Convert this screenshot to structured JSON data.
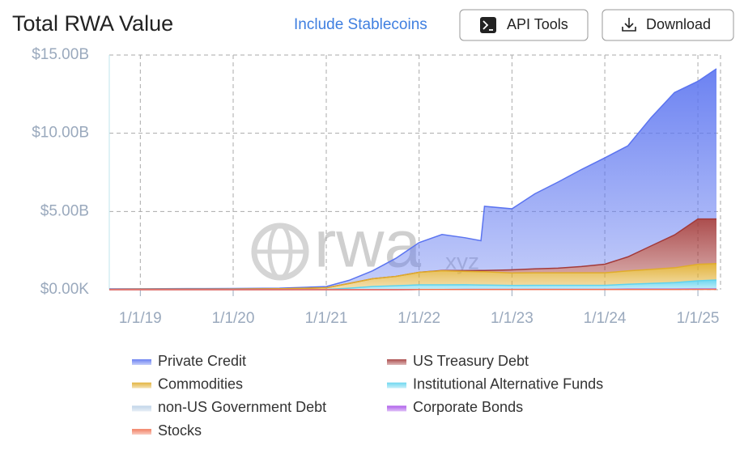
{
  "ui": {
    "stablecoin_toggle": "Include Stablecoins",
    "buttons": [
      "API Tools",
      "Download"
    ]
  },
  "chart_data": {
    "type": "stacked-area",
    "title": "Total RWA Value",
    "watermark": [
      "rwa",
      "xyz"
    ],
    "x": [
      "2018-09-01",
      "2019-01-01",
      "2019-07-01",
      "2020-01-01",
      "2020-07-01",
      "2021-01-01",
      "2021-04-01",
      "2021-07-01",
      "2021-10-01",
      "2022-01-01",
      "2022-04-01",
      "2022-07-01",
      "2022-09-01",
      "2022-09-15",
      "2023-01-01",
      "2023-04-01",
      "2023-07-01",
      "2023-10-01",
      "2024-01-01",
      "2024-04-01",
      "2024-07-01",
      "2024-10-01",
      "2025-01-01",
      "2025-03-15"
    ],
    "xlim": [
      "2018-09-01",
      "2025-03-15"
    ],
    "xticks": [
      {
        "value": "2019-01-01",
        "label": "1/1/19"
      },
      {
        "value": "2020-01-01",
        "label": "1/1/20"
      },
      {
        "value": "2021-01-01",
        "label": "1/1/21"
      },
      {
        "value": "2022-01-01",
        "label": "1/1/22"
      },
      {
        "value": "2023-01-01",
        "label": "1/1/23"
      },
      {
        "value": "2024-01-01",
        "label": "1/1/24"
      },
      {
        "value": "2025-01-01",
        "label": "1/1/25"
      }
    ],
    "ylim": [
      0,
      15
    ],
    "yticks": [
      {
        "value": 0,
        "label": "$0.00K"
      },
      {
        "value": 5,
        "label": "$5.00B"
      },
      {
        "value": 10,
        "label": "$10.00B"
      },
      {
        "value": 15,
        "label": "$15.00B"
      }
    ],
    "grid": true,
    "series": [
      {
        "name": "Private Credit",
        "color": "#5b74f0",
        "values": [
          0.03,
          0.03,
          0.04,
          0.04,
          0.04,
          0.08,
          0.2,
          0.5,
          1.15,
          1.9,
          2.3,
          2.1,
          1.9,
          4.1,
          3.9,
          4.8,
          5.5,
          6.2,
          6.8,
          7.1,
          8.2,
          9.1,
          8.8,
          9.6
        ]
      },
      {
        "name": "US Treasury Debt",
        "color": "#a33a3a",
        "values": [
          0,
          0,
          0,
          0,
          0,
          0,
          0,
          0,
          0,
          0,
          0.02,
          0.05,
          0.08,
          0.08,
          0.2,
          0.25,
          0.3,
          0.4,
          0.55,
          0.9,
          1.5,
          2.1,
          2.9,
          2.85
        ]
      },
      {
        "name": "Commodities",
        "color": "#e0ac2a",
        "values": [
          0.02,
          0.03,
          0.03,
          0.04,
          0.06,
          0.1,
          0.3,
          0.5,
          0.6,
          0.8,
          0.9,
          0.85,
          0.85,
          0.85,
          0.8,
          0.8,
          0.8,
          0.8,
          0.8,
          0.85,
          0.9,
          0.95,
          1.05,
          1.05
        ]
      },
      {
        "name": "Institutional Alternative Funds",
        "color": "#5fd3ee",
        "values": [
          0,
          0,
          0,
          0,
          0,
          0.02,
          0.1,
          0.2,
          0.25,
          0.3,
          0.3,
          0.3,
          0.28,
          0.28,
          0.25,
          0.25,
          0.25,
          0.25,
          0.25,
          0.3,
          0.35,
          0.4,
          0.5,
          0.55
        ]
      },
      {
        "name": "non-US Government Debt",
        "color": "#b9d0e6",
        "values": [
          0,
          0,
          0,
          0,
          0,
          0,
          0,
          0,
          0,
          0,
          0,
          0,
          0,
          0,
          0,
          0.01,
          0.01,
          0.01,
          0.01,
          0.02,
          0.02,
          0.02,
          0.03,
          0.03
        ]
      },
      {
        "name": "Corporate Bonds",
        "color": "#a64ce8",
        "values": [
          0,
          0,
          0,
          0,
          0,
          0,
          0,
          0,
          0,
          0,
          0,
          0.01,
          0.01,
          0.01,
          0.01,
          0.01,
          0.01,
          0.01,
          0.01,
          0.02,
          0.02,
          0.02,
          0.02,
          0.02
        ]
      },
      {
        "name": "Stocks",
        "color": "#f07050",
        "values": [
          0,
          0,
          0,
          0,
          0,
          0,
          0,
          0,
          0,
          0.01,
          0.01,
          0.01,
          0.01,
          0.01,
          0.01,
          0.01,
          0.01,
          0.01,
          0.01,
          0.01,
          0.01,
          0.01,
          0.02,
          0.02
        ]
      }
    ]
  }
}
